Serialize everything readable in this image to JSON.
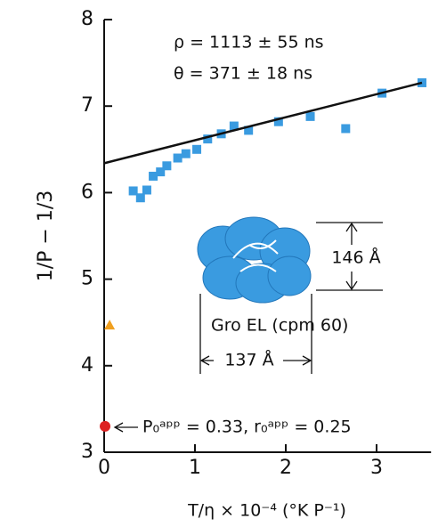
{
  "chart_data": {
    "type": "scatter",
    "xlabel": "T/η × 10⁻⁴  (°K P⁻¹)",
    "ylabel": "1/P − 1/3",
    "xlim": [
      0,
      3.6
    ],
    "ylim": [
      3,
      8
    ],
    "xticks": [
      0,
      1,
      2,
      3
    ],
    "yticks": [
      3,
      4,
      5,
      6,
      7,
      8
    ],
    "series": [
      {
        "marker": "square",
        "color": "#3a9be0",
        "x": [
          0.32,
          0.4,
          0.47,
          0.54,
          0.62,
          0.69,
          0.81,
          0.9,
          1.02,
          1.14,
          1.29,
          1.43,
          1.59,
          1.92,
          2.27,
          2.66,
          3.06,
          3.5
        ],
        "values": [
          6.02,
          5.94,
          6.03,
          6.19,
          6.24,
          6.31,
          6.4,
          6.45,
          6.5,
          6.62,
          6.68,
          6.77,
          6.72,
          6.82,
          6.88,
          6.74,
          7.15,
          7.27
        ]
      },
      {
        "marker": "line",
        "color": "#111111",
        "x": [
          0,
          3.5
        ],
        "values": [
          6.34,
          7.27
        ]
      },
      {
        "marker": "triangle",
        "color": "#f0a020",
        "x": [
          0.06
        ],
        "values": [
          4.47
        ]
      },
      {
        "marker": "circle",
        "color": "#dd2222",
        "x": [
          0.01
        ],
        "values": [
          3.3
        ]
      }
    ],
    "annotations": [
      "ρ = 1113 ± 55 ns",
      "θ = 371 ± 18 ns",
      "146 Å",
      "Gro EL (cpm 60)",
      "137 Å",
      "P₀ᵃᵖᵖ = 0.33,  r₀ᵃᵖᵖ = 0.25"
    ]
  }
}
